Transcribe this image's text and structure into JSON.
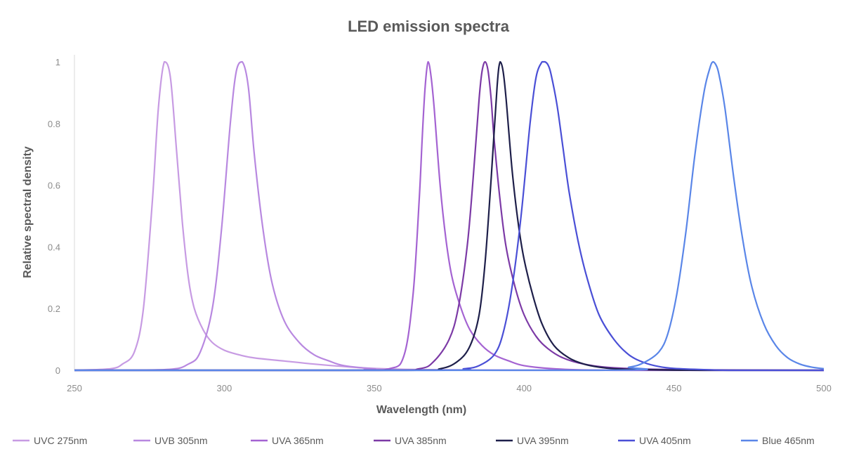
{
  "chart_data": {
    "type": "line",
    "title": "LED emission spectra",
    "xlabel": "Wavelength (nm)",
    "ylabel": "Relative spectral density",
    "xlim": [
      250,
      500
    ],
    "ylim": [
      0,
      1
    ],
    "x_ticks": [
      250,
      300,
      350,
      400,
      450,
      500
    ],
    "y_ticks": [
      0,
      0.2,
      0.4,
      0.6,
      0.8,
      1
    ],
    "x_tick_labels": [
      "250",
      "300",
      "350",
      "400",
      "450",
      "500"
    ],
    "y_tick_labels": [
      "0",
      "0.2",
      "0.4",
      "0.6",
      "0.8",
      "1"
    ],
    "grid": false,
    "legend_position": "bottom",
    "series": [
      {
        "name": "UVC 275nm",
        "color": "#c79be3",
        "x": [
          250,
          262,
          266,
          270,
          273,
          276,
          278,
          280,
          282,
          284,
          286,
          288,
          290,
          293,
          296,
          300,
          305,
          310,
          320,
          330,
          340,
          350,
          360,
          380,
          400,
          500
        ],
        "y": [
          0,
          0.005,
          0.02,
          0.06,
          0.2,
          0.55,
          0.85,
          1.0,
          0.95,
          0.72,
          0.48,
          0.3,
          0.2,
          0.13,
          0.09,
          0.065,
          0.05,
          0.04,
          0.03,
          0.02,
          0.012,
          0.006,
          0.003,
          0.001,
          0,
          0
        ]
      },
      {
        "name": "UVB 305nm",
        "color": "#b888e0",
        "x": [
          250,
          280,
          288,
          292,
          296,
          299,
          302,
          304,
          306,
          308,
          310,
          313,
          316,
          320,
          325,
          330,
          335,
          340,
          350,
          360,
          500
        ],
        "y": [
          0,
          0.002,
          0.02,
          0.06,
          0.2,
          0.45,
          0.8,
          0.97,
          1.0,
          0.92,
          0.7,
          0.45,
          0.28,
          0.16,
          0.09,
          0.05,
          0.03,
          0.015,
          0.005,
          0.001,
          0
        ]
      },
      {
        "name": "UVA 365nm",
        "color": "#a463d2",
        "x": [
          250,
          340,
          355,
          360,
          363,
          365,
          366,
          367,
          368,
          369,
          370,
          372,
          374,
          376,
          379,
          382,
          386,
          390,
          395,
          400,
          410,
          430,
          500
        ],
        "y": [
          0,
          0,
          0.005,
          0.05,
          0.25,
          0.55,
          0.75,
          0.92,
          1.0,
          0.95,
          0.85,
          0.6,
          0.42,
          0.3,
          0.2,
          0.13,
          0.08,
          0.05,
          0.03,
          0.015,
          0.005,
          0,
          0
        ]
      },
      {
        "name": "UVA 385nm",
        "color": "#7c3aa6",
        "x": [
          250,
          350,
          365,
          370,
          375,
          378,
          381,
          383,
          385,
          386,
          387,
          388,
          389,
          390,
          392,
          394,
          397,
          400,
          404,
          408,
          413,
          420,
          430,
          450,
          500
        ],
        "y": [
          0,
          0,
          0.005,
          0.03,
          0.1,
          0.2,
          0.4,
          0.62,
          0.88,
          0.97,
          1.0,
          0.97,
          0.88,
          0.75,
          0.55,
          0.4,
          0.27,
          0.18,
          0.11,
          0.07,
          0.04,
          0.02,
          0.008,
          0.002,
          0
        ]
      },
      {
        "name": "UVA 395nm",
        "color": "#1e1f4a",
        "x": [
          250,
          360,
          372,
          378,
          382,
          385,
          387,
          389,
          391,
          392,
          393,
          394,
          396,
          398,
          400,
          403,
          406,
          410,
          415,
          420,
          425,
          430,
          440,
          460,
          500
        ],
        "y": [
          0,
          0,
          0.005,
          0.03,
          0.08,
          0.18,
          0.35,
          0.62,
          0.92,
          1.0,
          0.97,
          0.88,
          0.65,
          0.48,
          0.36,
          0.24,
          0.15,
          0.08,
          0.04,
          0.02,
          0.01,
          0.005,
          0.002,
          0,
          0
        ]
      },
      {
        "name": "UVA 405nm",
        "color": "#4a4fd6",
        "x": [
          250,
          370,
          380,
          385,
          390,
          393,
          396,
          399,
          402,
          404,
          406,
          407,
          408,
          409,
          411,
          413,
          415,
          418,
          421,
          425,
          430,
          435,
          440,
          445,
          450,
          460,
          470,
          500
        ],
        "y": [
          0,
          0,
          0.005,
          0.015,
          0.05,
          0.12,
          0.27,
          0.5,
          0.8,
          0.95,
          1.0,
          1.0,
          0.99,
          0.96,
          0.86,
          0.72,
          0.58,
          0.42,
          0.3,
          0.18,
          0.1,
          0.05,
          0.025,
          0.012,
          0.006,
          0.002,
          0,
          0
        ]
      },
      {
        "name": "Blue 465nm",
        "color": "#5a86e8",
        "x": [
          250,
          425,
          435,
          440,
          445,
          448,
          451,
          454,
          457,
          460,
          462,
          463,
          464,
          465,
          467,
          470,
          473,
          476,
          480,
          484,
          488,
          492,
          496,
          500
        ],
        "y": [
          0,
          0,
          0.01,
          0.025,
          0.06,
          0.12,
          0.25,
          0.45,
          0.7,
          0.9,
          0.98,
          1.0,
          0.99,
          0.96,
          0.85,
          0.62,
          0.42,
          0.27,
          0.15,
          0.08,
          0.04,
          0.02,
          0.01,
          0.005
        ]
      }
    ]
  }
}
